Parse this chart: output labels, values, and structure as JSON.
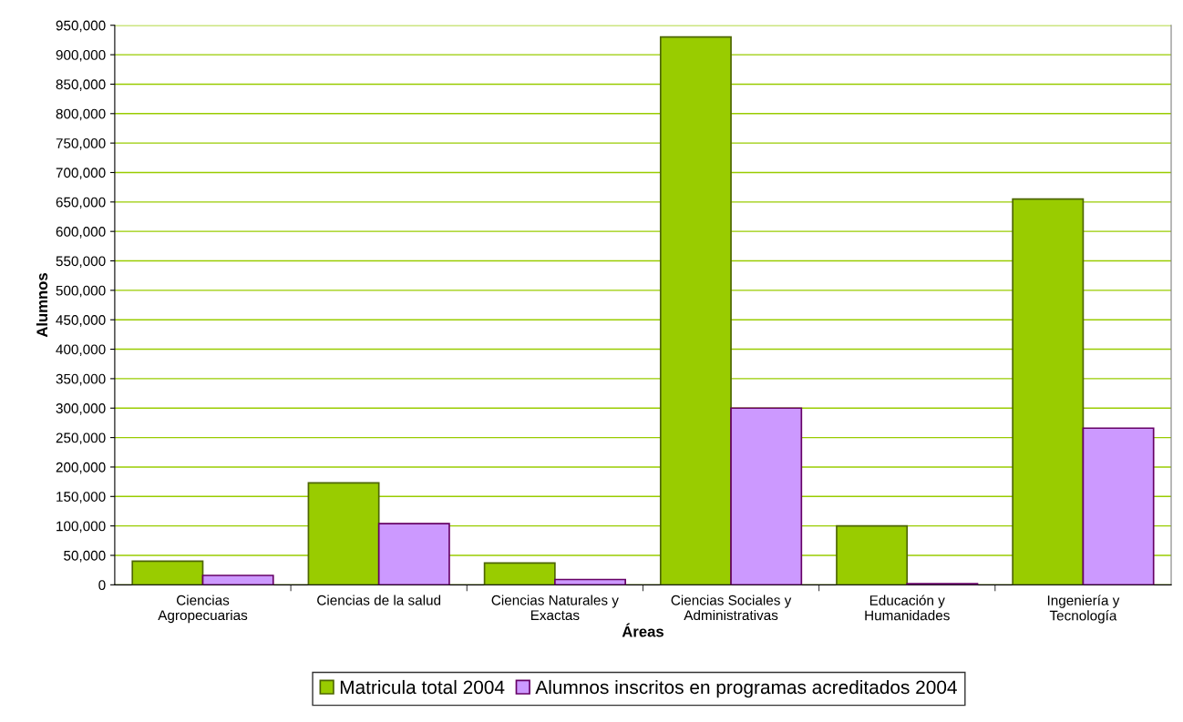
{
  "chart_data": {
    "type": "bar",
    "xlabel": "Áreas",
    "ylabel": "Alumnos",
    "categories": [
      "Ciencias\nAgropecuarias",
      "Ciencias de la salud",
      "Ciencias Naturales y\nExactas",
      "Ciencias Sociales y\nAdministrativas",
      "Educación y\nHumanidades",
      "Ingeniería y\nTecnología"
    ],
    "series": [
      {
        "name": "Matricula total 2004",
        "color": "#99cc00",
        "values": [
          40000,
          173000,
          37000,
          930000,
          100000,
          655000
        ]
      },
      {
        "name": "Alumnos inscritos en programas acreditados 2004",
        "color": "#cc99ff",
        "values": [
          16000,
          104000,
          9000,
          300000,
          2000,
          266000
        ]
      }
    ],
    "ylim": [
      0,
      950000
    ],
    "yticks": [
      {
        "value": 0,
        "label": "0"
      },
      {
        "value": 50000,
        "label": "50,000"
      },
      {
        "value": 100000,
        "label": "100,000"
      },
      {
        "value": 150000,
        "label": "150,000"
      },
      {
        "value": 200000,
        "label": "200,000"
      },
      {
        "value": 250000,
        "label": "250,000"
      },
      {
        "value": 300000,
        "label": "300,000"
      },
      {
        "value": 350000,
        "label": "350,000"
      },
      {
        "value": 400000,
        "label": "400,000"
      },
      {
        "value": 450000,
        "label": "450,000"
      },
      {
        "value": 500000,
        "label": "500,000"
      },
      {
        "value": 550000,
        "label": "550,000"
      },
      {
        "value": 600000,
        "label": "600,000"
      },
      {
        "value": 650000,
        "label": "650,000"
      },
      {
        "value": 700000,
        "label": "700,000"
      },
      {
        "value": 750000,
        "label": "750,000"
      },
      {
        "value": 800000,
        "label": "800,000"
      },
      {
        "value": 850000,
        "label": "850,000"
      },
      {
        "value": 900000,
        "label": "900,000"
      },
      {
        "value": 950000,
        "label": "950,000"
      }
    ],
    "grid": "y",
    "legend": "bottom"
  }
}
